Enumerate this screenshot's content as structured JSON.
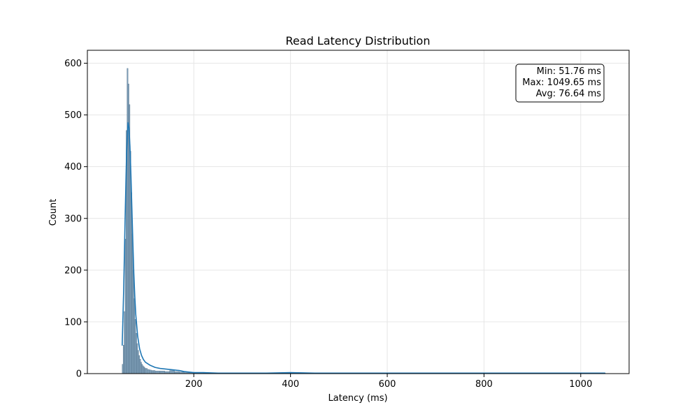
{
  "chart_data": {
    "type": "histogram",
    "title": "Read Latency Distribution",
    "xlabel": "Latency (ms)",
    "ylabel": "Count",
    "xlim": [
      -20,
      1100
    ],
    "ylim": [
      0,
      625
    ],
    "xticks": [
      200,
      400,
      600,
      800,
      1000
    ],
    "yticks": [
      0,
      100,
      200,
      300,
      400,
      500,
      600
    ],
    "grid": true,
    "bar_color": "#7f9fb8",
    "bar_edge_color": "#5f7f98",
    "kde_color": "#1f77b4",
    "histogram": {
      "bin_edges": [
        52,
        54,
        56,
        58,
        60,
        62,
        64,
        66,
        68,
        70,
        72,
        74,
        76,
        78,
        80,
        82,
        84,
        86,
        88,
        90,
        92,
        94,
        96,
        98,
        100,
        104,
        108,
        112,
        116,
        120,
        130,
        140,
        150,
        160,
        170,
        180,
        200,
        220,
        250,
        300,
        350,
        400,
        450,
        500,
        600,
        700,
        800,
        900,
        1000,
        1050
      ],
      "counts": [
        18,
        55,
        120,
        260,
        470,
        590,
        560,
        520,
        430,
        350,
        270,
        200,
        145,
        105,
        78,
        58,
        45,
        35,
        28,
        22,
        18,
        15,
        13,
        11,
        10,
        8,
        7,
        6,
        6,
        5,
        5,
        4,
        6,
        4,
        3,
        2,
        2,
        1,
        1,
        1,
        1,
        1,
        1,
        1,
        1,
        1,
        1,
        1,
        1
      ]
    },
    "kde": {
      "x": [
        52,
        55,
        58,
        61,
        64,
        66,
        68,
        70,
        72,
        74,
        76,
        78,
        80,
        84,
        88,
        92,
        96,
        100,
        110,
        120,
        130,
        140,
        150,
        160,
        170,
        180,
        190,
        200,
        220,
        250,
        300,
        350,
        400,
        450,
        500,
        600,
        700,
        800,
        900,
        1000,
        1050
      ],
      "y": [
        55,
        160,
        300,
        425,
        485,
        475,
        440,
        385,
        320,
        255,
        195,
        150,
        115,
        72,
        48,
        35,
        27,
        22,
        16,
        12,
        10,
        9,
        8,
        7,
        6,
        4,
        3,
        2,
        2,
        1,
        1,
        1,
        2,
        1,
        1,
        1,
        1,
        1,
        1,
        1,
        1
      ]
    },
    "annotation": {
      "lines": [
        "Min: 51.76 ms",
        "Max: 1049.65 ms",
        "Avg: 76.64 ms"
      ]
    }
  }
}
